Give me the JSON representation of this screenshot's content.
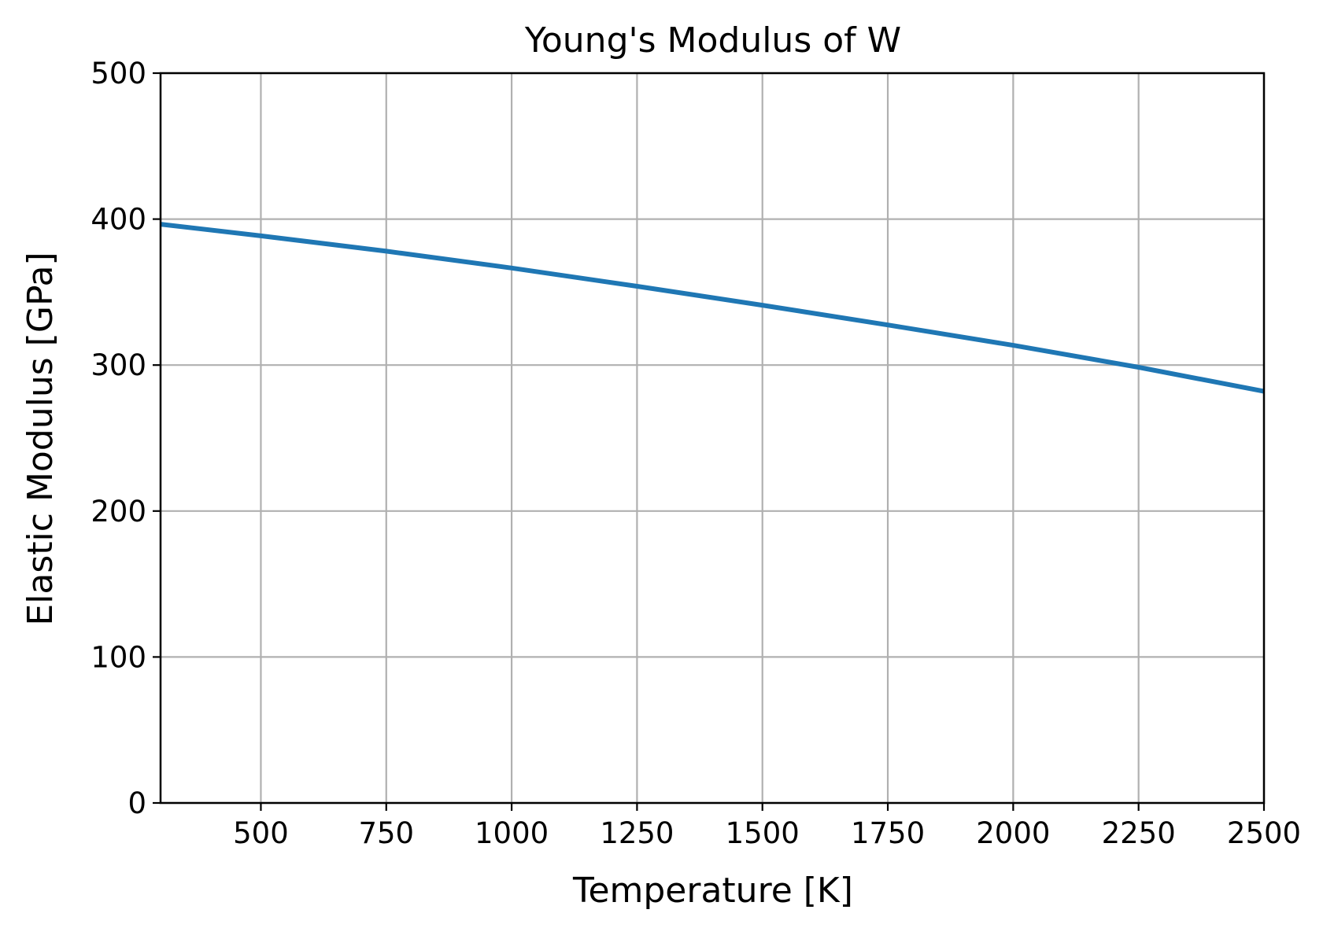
{
  "chart_data": {
    "type": "line",
    "title": "Young's  Modulus of W",
    "xlabel": "Temperature [K]",
    "ylabel": "Elastic Modulus [GPa]",
    "xlim": [
      300,
      2500
    ],
    "ylim": [
      0,
      500
    ],
    "x_ticks": [
      500,
      750,
      1000,
      1250,
      1500,
      1750,
      2000,
      2250,
      2500
    ],
    "y_ticks": [
      0,
      100,
      200,
      300,
      400,
      500
    ],
    "grid": true,
    "series": [
      {
        "color": "#1f77b4",
        "x": [
          300,
          500,
          750,
          1000,
          1250,
          1500,
          1750,
          2000,
          2250,
          2500
        ],
        "y": [
          396.5,
          388.5,
          378,
          366.5,
          354,
          341,
          327.5,
          313.5,
          298.5,
          282
        ]
      }
    ]
  }
}
